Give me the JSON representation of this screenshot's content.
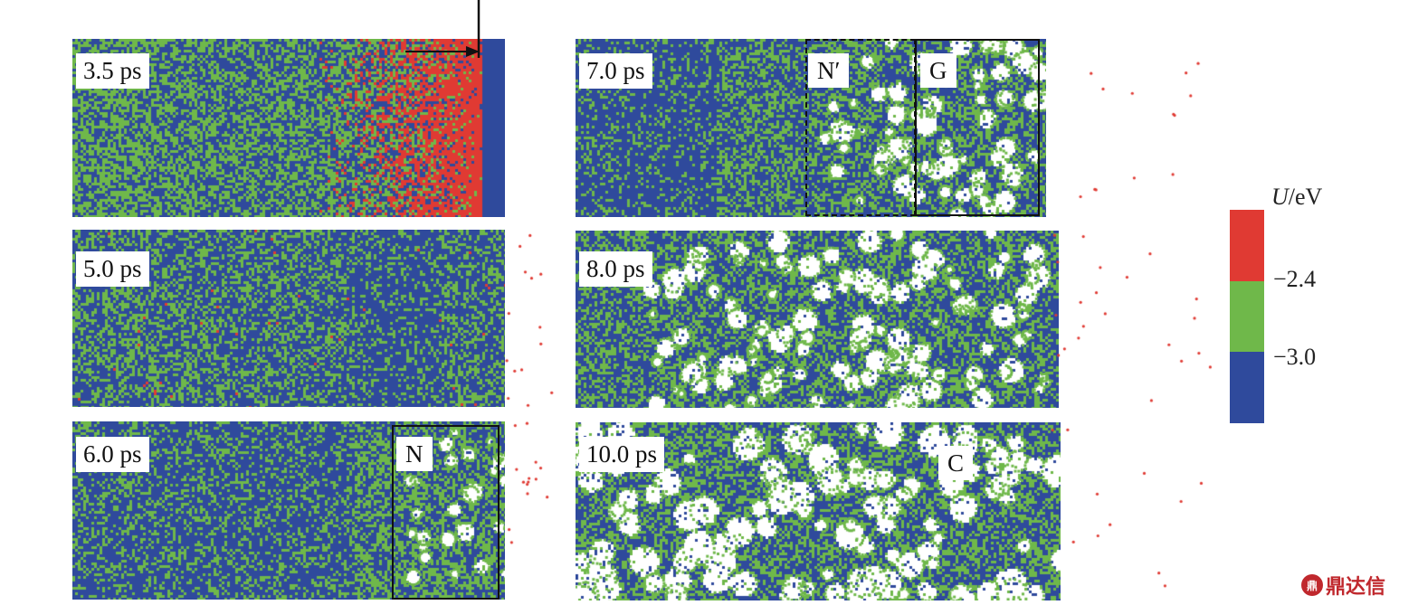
{
  "panels": [
    {
      "id": "p35",
      "time": "3.5 ps",
      "pattern": "shock"
    },
    {
      "id": "p50",
      "time": "5.0 ps",
      "pattern": "blue-green"
    },
    {
      "id": "p60",
      "time": "6.0 ps",
      "pattern": "blue-green-nucleate",
      "region": "N"
    },
    {
      "id": "p70",
      "time": "7.0 ps",
      "pattern": "growth",
      "region_dashed": "N′",
      "region": "G"
    },
    {
      "id": "p80",
      "time": "8.0 ps",
      "pattern": "porous"
    },
    {
      "id": "p100",
      "time": "10.0 ps",
      "pattern": "coalesce",
      "region": "C"
    }
  ],
  "colorbar": {
    "title_var": "U",
    "title_unit": "/eV",
    "ticks": [
      "−2.4",
      "−3.0"
    ],
    "colors": {
      "high": "#e03a33",
      "mid": "#6fb84a",
      "low": "#2f4a9c"
    }
  },
  "watermark": {
    "logo": "鼎",
    "text": "鼎达信"
  }
}
